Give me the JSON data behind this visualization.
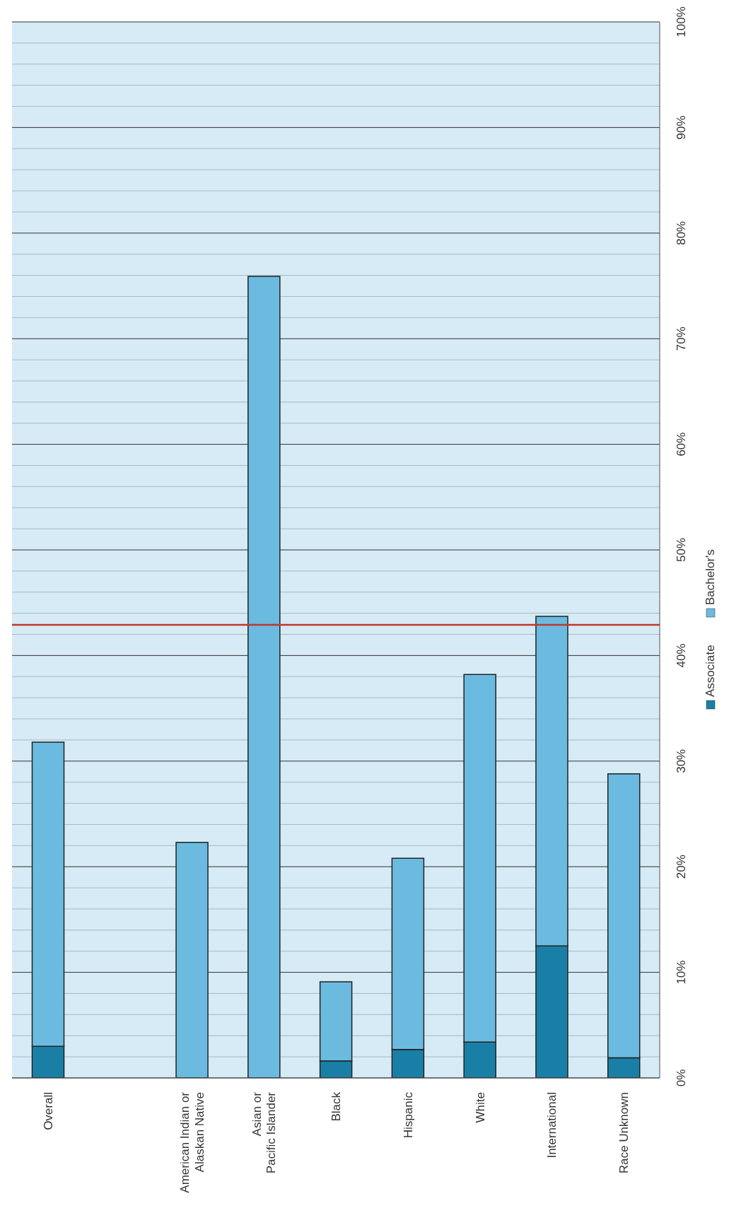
{
  "chart_data": {
    "type": "bar",
    "stacked": true,
    "categories": [
      "Overall",
      null,
      "American Indian or\nAlaskan Native",
      "Asian or\nPacific Islander",
      "Black",
      "Hispanic",
      "White",
      "International",
      "Race Unknown"
    ],
    "series": [
      {
        "name": "Associate",
        "color": "#1a7fa6",
        "values": [
          3.0,
          null,
          0,
          0,
          1.6,
          2.7,
          3.4,
          12.5,
          1.9
        ]
      },
      {
        "name": "Bachelor's",
        "color": "#6bbbe0",
        "values": [
          28.8,
          null,
          22.3,
          75.9,
          7.5,
          18.1,
          34.8,
          31.2,
          26.9
        ]
      }
    ],
    "ylim": [
      0,
      100
    ],
    "yticks": [
      {
        "value": 0,
        "label": "0%"
      },
      {
        "value": 2,
        "label": null
      },
      {
        "value": 4,
        "label": null
      },
      {
        "value": 6,
        "label": null
      },
      {
        "value": 8,
        "label": null
      },
      {
        "value": 10,
        "label": "10%"
      },
      {
        "value": 12,
        "label": null
      },
      {
        "value": 14,
        "label": null
      },
      {
        "value": 16,
        "label": null
      },
      {
        "value": 18,
        "label": null
      },
      {
        "value": 20,
        "label": "20%"
      },
      {
        "value": 22,
        "label": null
      },
      {
        "value": 24,
        "label": null
      },
      {
        "value": 26,
        "label": null
      },
      {
        "value": 28,
        "label": null
      },
      {
        "value": 30,
        "label": "30%"
      },
      {
        "value": 32,
        "label": null
      },
      {
        "value": 34,
        "label": null
      },
      {
        "value": 36,
        "label": null
      },
      {
        "value": 38,
        "label": null
      },
      {
        "value": 40,
        "label": "40%"
      },
      {
        "value": 42,
        "label": null
      },
      {
        "value": 44,
        "label": null
      },
      {
        "value": 46,
        "label": null
      },
      {
        "value": 48,
        "label": null
      },
      {
        "value": 50,
        "label": "50%"
      },
      {
        "value": 52,
        "label": null
      },
      {
        "value": 54,
        "label": null
      },
      {
        "value": 56,
        "label": null
      },
      {
        "value": 58,
        "label": null
      },
      {
        "value": 60,
        "label": "60%"
      },
      {
        "value": 62,
        "label": null
      },
      {
        "value": 64,
        "label": null
      },
      {
        "value": 66,
        "label": null
      },
      {
        "value": 68,
        "label": null
      },
      {
        "value": 70,
        "label": "70%"
      },
      {
        "value": 72,
        "label": null
      },
      {
        "value": 74,
        "label": null
      },
      {
        "value": 76,
        "label": null
      },
      {
        "value": 78,
        "label": null
      },
      {
        "value": 80,
        "label": "80%"
      },
      {
        "value": 82,
        "label": null
      },
      {
        "value": 84,
        "label": null
      },
      {
        "value": 86,
        "label": null
      },
      {
        "value": 88,
        "label": null
      },
      {
        "value": 90,
        "label": "90%"
      },
      {
        "value": 92,
        "label": null
      },
      {
        "value": 94,
        "label": null
      },
      {
        "value": 96,
        "label": null
      },
      {
        "value": 98,
        "label": null
      },
      {
        "value": 100,
        "label": "100%"
      }
    ],
    "ref_lines": [
      {
        "axis": "y",
        "value": 42.9,
        "color": "#c0392b"
      }
    ],
    "grid": "y",
    "legend": "right"
  }
}
